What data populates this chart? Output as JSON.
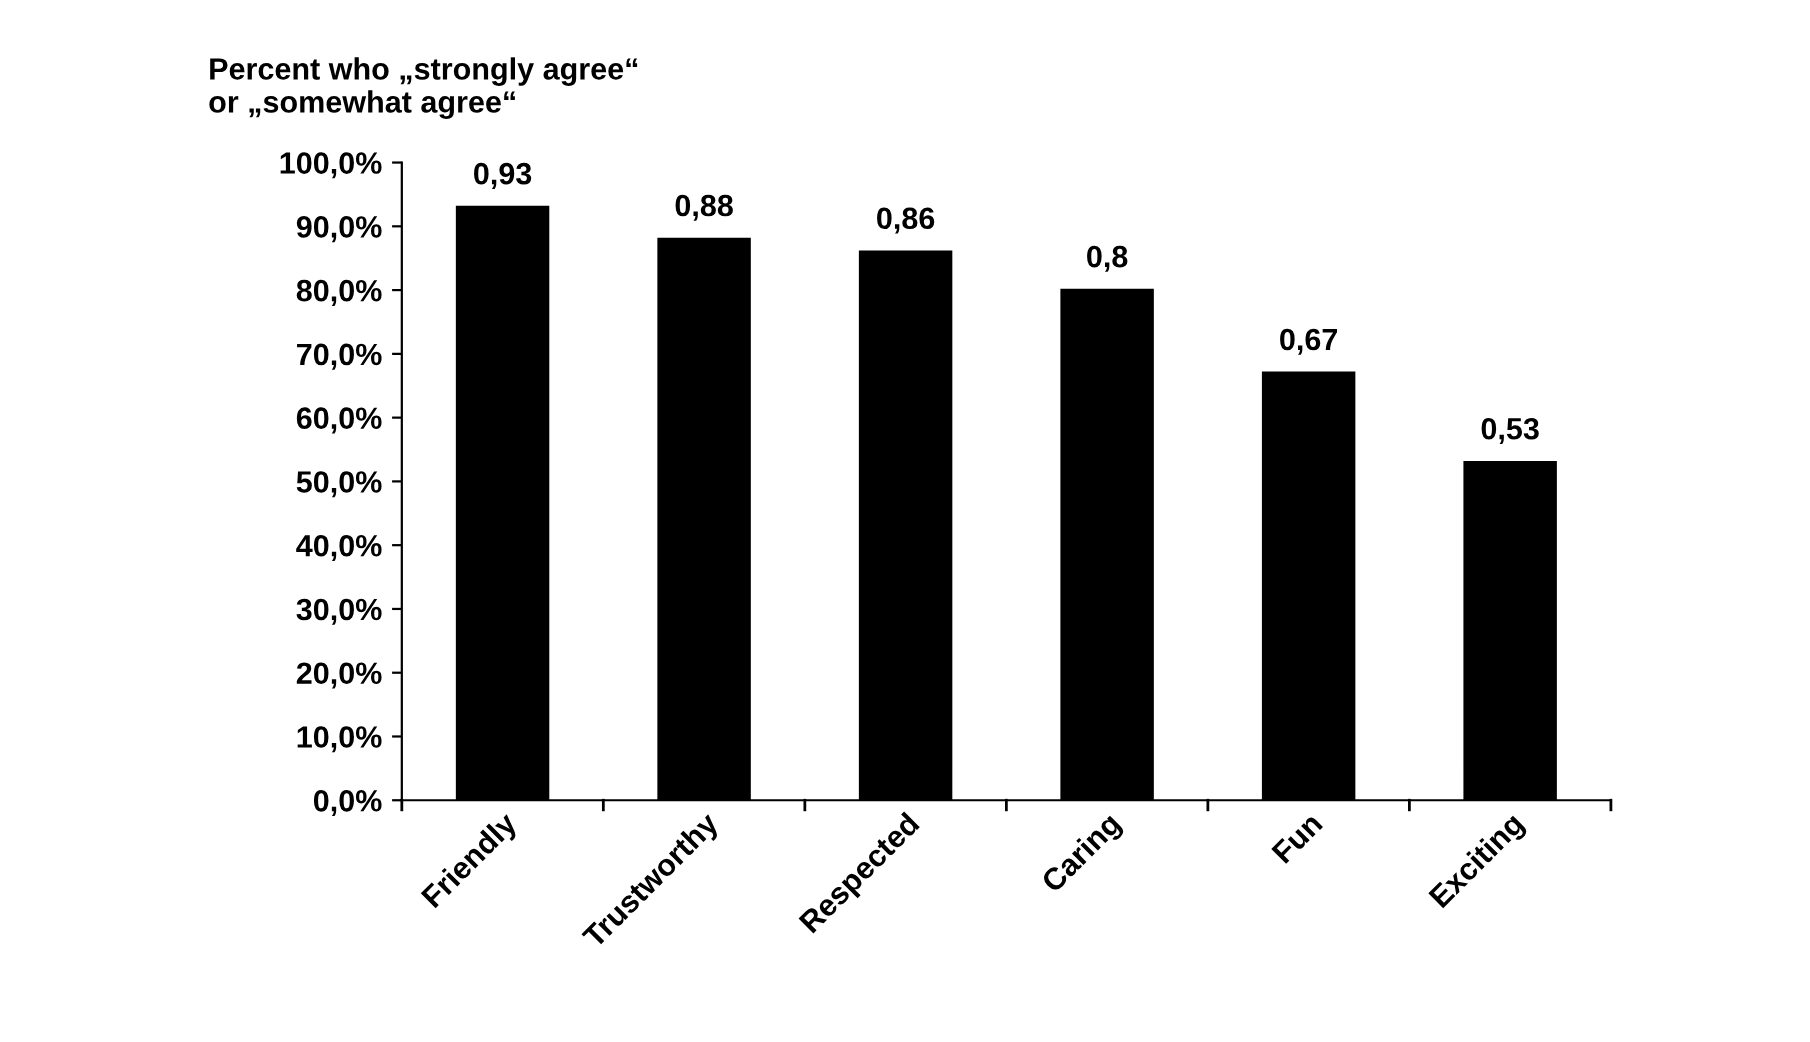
{
  "chart_data": {
    "type": "bar",
    "title": "Percent who „strongly agree“\nor „somewhat agree“",
    "categories": [
      "Friendly",
      "Trustworthy",
      "Respected",
      "Caring",
      "Fun",
      "Exciting"
    ],
    "values": [
      0.93,
      0.88,
      0.86,
      0.8,
      0.67,
      0.53
    ],
    "value_labels": [
      "0,93",
      "0,88",
      "0,86",
      "0,8",
      "0,67",
      "0,53"
    ],
    "color": "#000000",
    "ylim": [
      0,
      1
    ],
    "yticks": [
      {
        "value": 0,
        "label": "0,0%"
      },
      {
        "value": 0.1,
        "label": "10,0%"
      },
      {
        "value": 0.2,
        "label": "20,0%"
      },
      {
        "value": 0.3,
        "label": "30,0%"
      },
      {
        "value": 0.4,
        "label": "40,0%"
      },
      {
        "value": 0.5,
        "label": "50,0%"
      },
      {
        "value": 0.6,
        "label": "60,0%"
      },
      {
        "value": 0.7,
        "label": "70,0%"
      },
      {
        "value": 0.8,
        "label": "80,0%"
      },
      {
        "value": 0.9,
        "label": "90,0%"
      },
      {
        "value": 1,
        "label": "100,0%"
      }
    ],
    "grid": false,
    "legend": false
  }
}
